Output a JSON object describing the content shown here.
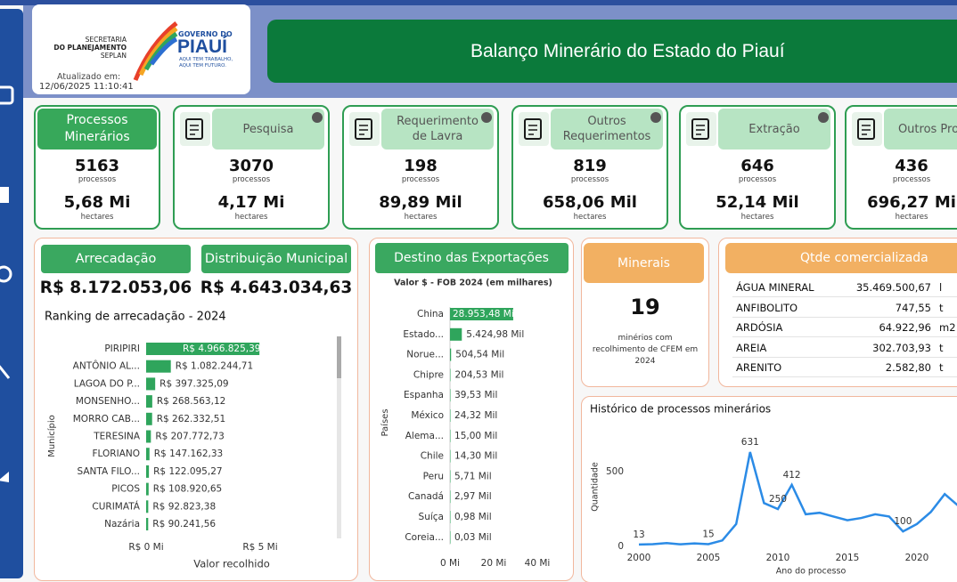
{
  "header": {
    "org_lines": [
      "SECRETARIA",
      "DO PLANEJAMENTO",
      "SEPLAN"
    ],
    "gov_lines": [
      "GOVERNO DO",
      "PIAUÍ"
    ],
    "slogan_lines": [
      "AQUI TEM TRABALHO,",
      "AQUI TEM FUTURO."
    ],
    "updated_label": "Atualizado em:",
    "updated_at": "12/06/2025 11:10:41",
    "title": "Balanço Minerário do Estado do Piauí"
  },
  "cards": [
    {
      "title": "Processos Minerários",
      "count": 5163,
      "count_label": "processos",
      "area": "5,68 Mi",
      "area_label": "hectares"
    },
    {
      "title": "Pesquisa",
      "count": 3070,
      "count_label": "processos",
      "area": "4,17 Mi",
      "area_label": "hectares"
    },
    {
      "title": "Requerimento de Lavra",
      "count": 198,
      "count_label": "processos",
      "area": "89,89 Mil",
      "area_label": "hectares"
    },
    {
      "title": "Outros Requerimentos",
      "count": 819,
      "count_label": "processos",
      "area": "658,06 Mil",
      "area_label": "hectares"
    },
    {
      "title": "Extração",
      "count": 646,
      "count_label": "processos",
      "area": "52,14 Mil",
      "area_label": "hectares"
    },
    {
      "title": "Outros Pro",
      "count": 436,
      "count_label": "processos",
      "area": "696,27 Mi",
      "area_label": "hectares"
    }
  ],
  "revenue": {
    "title": "Arrecadação",
    "value": "R$ 8.172.053,06"
  },
  "distribution": {
    "title": "Distribuição Municipal",
    "value": "R$ 4.643.034,63"
  },
  "minerals": {
    "title": "Minerais",
    "count": 19,
    "description": "minérios com recolhimento de CFEM em 2024"
  },
  "traded": {
    "title": "Qtde comercializada",
    "rows": [
      [
        "ÁGUA MINERAL",
        "35.469.500,67",
        "l"
      ],
      [
        "ANFIBOLITO",
        "747,55",
        "t"
      ],
      [
        "ARDÓSIA",
        "64.922,96",
        "m2"
      ],
      [
        "AREIA",
        "302.703,93",
        "t"
      ],
      [
        "ARENITO",
        "2.582,80",
        "t"
      ]
    ]
  },
  "chart_data": [
    {
      "type": "hbar",
      "title": "Ranking de arrecadação - 2024",
      "x_label": "Valor recolhido",
      "y_label": "Município",
      "color": "#2fa55c",
      "categories": [
        "PIRIPIRI",
        "ANTÔNIO AL...",
        "LAGOA DO P...",
        "MONSENHO...",
        "MORRO CAB...",
        "TERESINA",
        "FLORIANO",
        "SANTA FILO...",
        "PICOS",
        "CURIMATÁ",
        "Nazária"
      ],
      "values": [
        4966825.39,
        1082244.71,
        397325.09,
        268563.12,
        262332.51,
        207772.73,
        147162.33,
        122095.27,
        108920.65,
        92823.38,
        90241.56
      ],
      "value_labels": [
        "R$ 4.966.825,39",
        "R$ 1.082.244,71",
        "R$ 397.325,09",
        "R$ 268.563,12",
        "R$ 262.332,51",
        "R$ 207.772,73",
        "R$ 147.162,33",
        "R$ 122.095,27",
        "R$ 108.920,65",
        "R$ 92.823,38",
        "R$ 90.241,56"
      ],
      "xlim": [
        0,
        5000000
      ],
      "xticks": [
        {
          "value": 0,
          "label": "R$ 0 Mi"
        },
        {
          "value": 5000000,
          "label": "R$ 5 Mi"
        }
      ]
    },
    {
      "type": "hbar",
      "title": "Destino das Exportações",
      "subtitle": "Valor $ - FOB 2024 (em milhares)",
      "y_label": "Países",
      "color": "#2fa55c",
      "categories": [
        "China",
        "Estado...",
        "Norue...",
        "Chipre",
        "Espanha",
        "México",
        "Alema...",
        "Chile",
        "Peru",
        "Canadá",
        "Suíça",
        "Coreia..."
      ],
      "values": [
        28.95348,
        5.42498,
        0.50454,
        0.20453,
        0.03953,
        0.02432,
        0.015,
        0.0143,
        0.00571,
        0.00297,
        0.00098,
        3e-05
      ],
      "value_labels": [
        "28.953,48 Mil",
        "5.424,98 Mil",
        "504,54 Mil",
        "204,53 Mil",
        "39,53 Mil",
        "24,32 Mil",
        "15,00 Mil",
        "14,30 Mil",
        "5,71 Mil",
        "2,97 Mil",
        "0,98 Mil",
        "0,03 Mil"
      ],
      "xlim": [
        0,
        40
      ],
      "xticks": [
        {
          "value": 0,
          "label": "0 Mi"
        },
        {
          "value": 20,
          "label": "20 Mi"
        },
        {
          "value": 40,
          "label": "40 Mi"
        }
      ]
    },
    {
      "type": "line",
      "title": "Histórico de processos minerários",
      "x_label": "Ano do processo",
      "y_label": "Quantidade",
      "color": "#2b8be6",
      "x": [
        2000,
        2001,
        2002,
        2003,
        2004,
        2005,
        2006,
        2007,
        2008,
        2009,
        2010,
        2011,
        2012,
        2013,
        2014,
        2015,
        2016,
        2017,
        2018,
        2019,
        2020,
        2021,
        2022,
        2023
      ],
      "values": [
        13,
        15,
        22,
        14,
        20,
        15,
        40,
        150,
        631,
        290,
        250,
        412,
        215,
        225,
        200,
        175,
        190,
        215,
        200,
        100,
        150,
        230,
        350,
        270
      ],
      "value_labels": [
        "13",
        null,
        null,
        null,
        null,
        "15",
        null,
        null,
        "631",
        null,
        "250",
        "412",
        null,
        null,
        null,
        null,
        null,
        null,
        null,
        "100",
        null,
        null,
        null,
        null
      ],
      "xlim": [
        2000,
        2025
      ],
      "xticks": [
        2000,
        2005,
        2010,
        2015,
        2020
      ],
      "ylim": [
        0,
        800
      ],
      "yticks": [
        0,
        500
      ]
    }
  ]
}
